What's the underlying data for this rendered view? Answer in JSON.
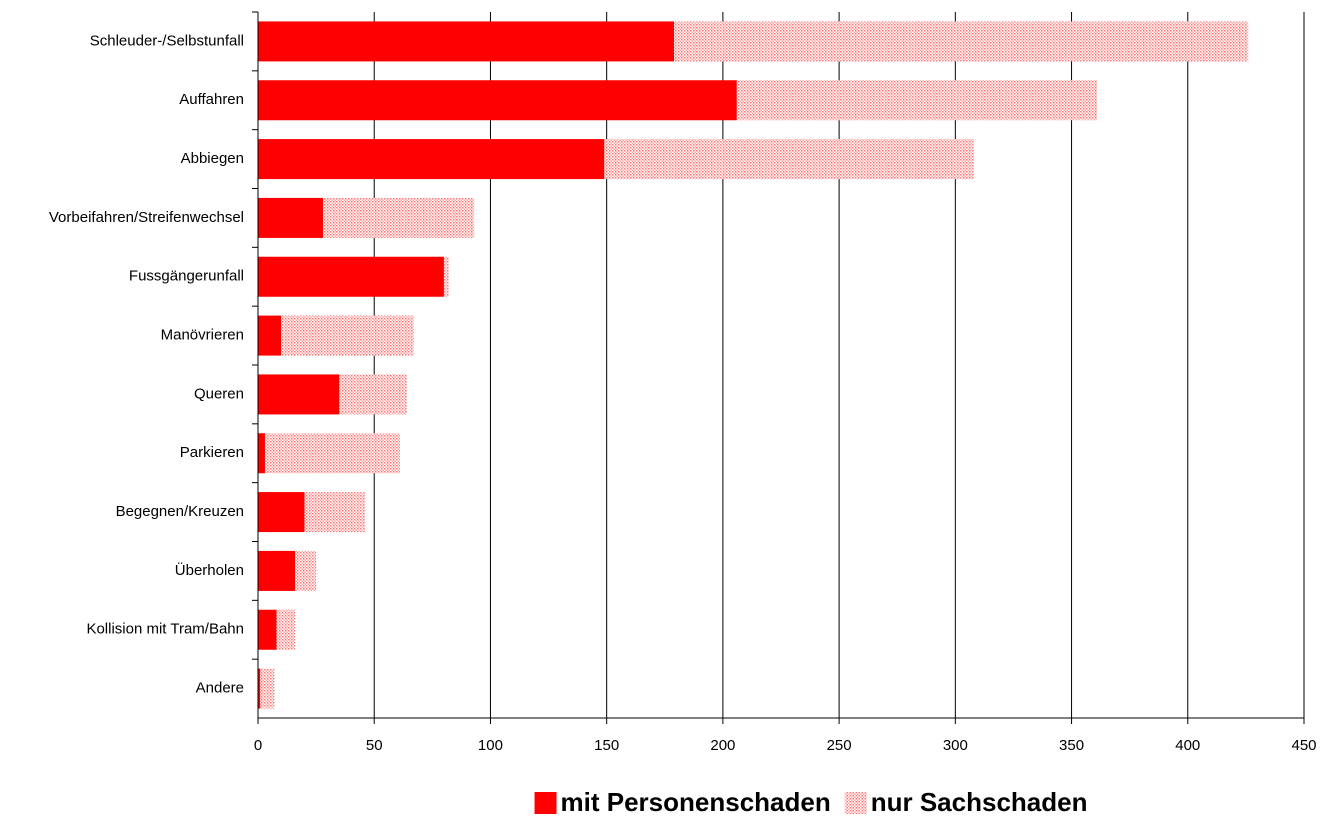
{
  "chart_data": {
    "type": "stacked_barh",
    "categories": [
      "Schleuder-/Selbstunfall",
      "Auffahren",
      "Abbiegen",
      "Vorbeifahren/Streifenwechsel",
      "Fussgängerunfall",
      "Manövrieren",
      "Queren",
      "Parkieren",
      "Begegnen/Kreuzen",
      "Überholen",
      "Kollision mit Tram/Bahn",
      "Andere"
    ],
    "series": [
      {
        "name": "mit Personenschaden",
        "color": "#ff0000",
        "fill": "solid",
        "values": [
          179,
          206,
          149,
          28,
          80,
          10,
          35,
          3,
          20,
          16,
          8,
          1
        ]
      },
      {
        "name": "nur Sachschaden",
        "color": "#ff0000",
        "fill": "dotted",
        "values": [
          247,
          155,
          159,
          65,
          2,
          57,
          29,
          58,
          26,
          9,
          8,
          6
        ]
      }
    ],
    "xlim": [
      0,
      450
    ],
    "xticks": [
      0,
      50,
      100,
      150,
      200,
      250,
      300,
      350,
      400,
      450
    ],
    "grid": true,
    "legend": "bottom"
  }
}
